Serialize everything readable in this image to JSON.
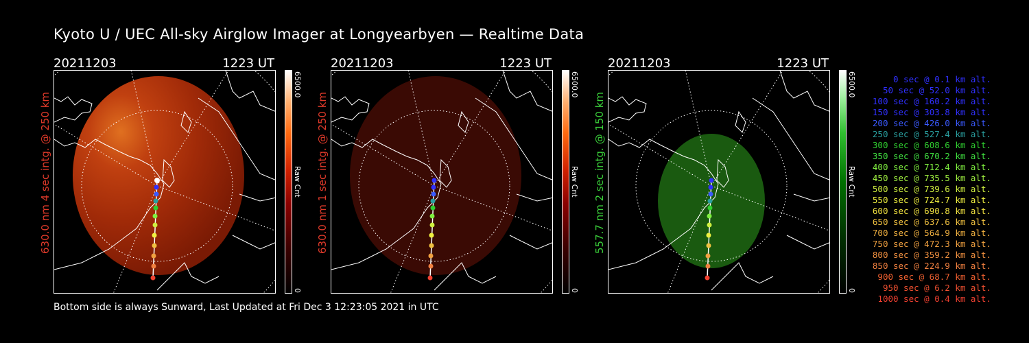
{
  "title": "Kyoto U / UEC All-sky Airglow Imager at Longyearbyen — Realtime Data",
  "footer": "Bottom side is always Sunward, Last Updated at Fri Dec  3 12:23:05 2021 in UTC",
  "panels": [
    {
      "date": "20211203",
      "time": "1223 UT",
      "ylabel": "630.0 nm 4 sec intg. @ 250 km",
      "ylabel_color": "#e03a2a",
      "cb_max": "6500.0",
      "cb_min": "0",
      "cb_label": "Raw Cnt",
      "brightness": "bright red emission"
    },
    {
      "date": "20211203",
      "time": "1223 UT",
      "ylabel": "630.0 nm 1 sec intg. @ 250 km",
      "ylabel_color": "#e03a2a",
      "cb_max": "6500.0",
      "cb_min": "0",
      "cb_label": "Raw Cnt",
      "brightness": "dim red emission"
    },
    {
      "date": "20211203",
      "time": "1223 UT",
      "ylabel": "557.7 nm 2 sec intg. @ 150 km",
      "ylabel_color": "#3ad03a",
      "cb_max": "6500.0",
      "cb_min": "0",
      "cb_label": "Raw Cnt",
      "brightness": "green emission"
    }
  ],
  "legend": [
    {
      "text": "0 sec @   0.1 km alt.",
      "color": "#3030ff"
    },
    {
      "text": "50 sec @  52.0 km alt.",
      "color": "#3030ff"
    },
    {
      "text": "100 sec @ 160.2 km alt.",
      "color": "#3030ff"
    },
    {
      "text": "150 sec @ 303.8 km alt.",
      "color": "#3030ff"
    },
    {
      "text": "200 sec @ 426.0 km alt.",
      "color": "#3a5aff"
    },
    {
      "text": "250 sec @ 527.4 km alt.",
      "color": "#2aa0a0"
    },
    {
      "text": "300 sec @ 608.6 km alt.",
      "color": "#30d030"
    },
    {
      "text": "350 sec @ 670.2 km alt.",
      "color": "#40e040"
    },
    {
      "text": "400 sec @ 712.4 km alt.",
      "color": "#80f040"
    },
    {
      "text": "450 sec @ 735.5 km alt.",
      "color": "#a0f040"
    },
    {
      "text": "500 sec @ 739.6 km alt.",
      "color": "#d0f040"
    },
    {
      "text": "550 sec @ 724.7 km alt.",
      "color": "#f0f040"
    },
    {
      "text": "600 sec @ 690.8 km alt.",
      "color": "#f0e040"
    },
    {
      "text": "650 sec @ 637.6 km alt.",
      "color": "#f0c040"
    },
    {
      "text": "700 sec @ 564.9 km alt.",
      "color": "#f0b040"
    },
    {
      "text": "750 sec @ 472.3 km alt.",
      "color": "#f0a040"
    },
    {
      "text": "800 sec @ 359.2 km alt.",
      "color": "#f09040"
    },
    {
      "text": "850 sec @ 224.9 km alt.",
      "color": "#f08040"
    },
    {
      "text": "900 sec @  68.7 km alt.",
      "color": "#f06030"
    },
    {
      "text": "950 sec @   6.2 km alt.",
      "color": "#f05030"
    },
    {
      "text": "1000 sec @   0.4 km alt.",
      "color": "#f04030"
    }
  ]
}
